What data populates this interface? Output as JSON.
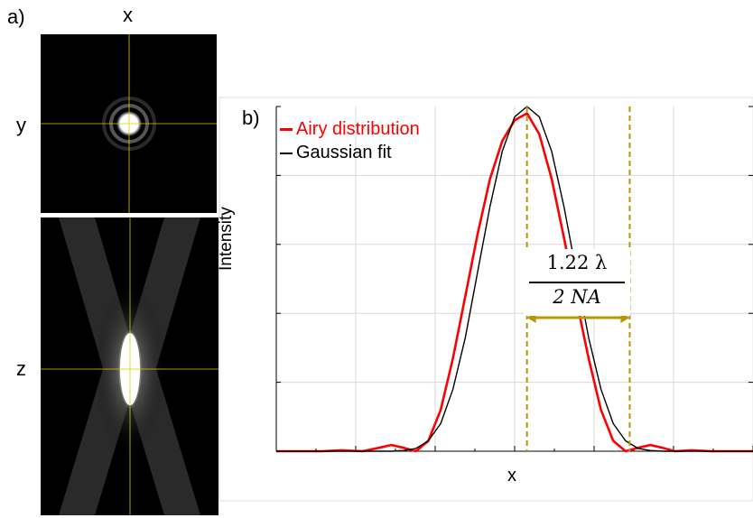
{
  "panel_a": {
    "label": "a)",
    "x_label": "x",
    "y_label": "y",
    "z_label": "z",
    "crosshair_color": "#d9d000"
  },
  "panel_b": {
    "label": "b)",
    "annotation": {
      "numerator": "1.22 λ",
      "denominator": "2 NA",
      "color": "#b8960c"
    }
  },
  "chart_data": {
    "type": "line",
    "title": "",
    "xlabel": "x",
    "ylabel": "Intensity",
    "grid": true,
    "legend_placement": "top-left",
    "xlim": [
      -6.1,
      5.5
    ],
    "ylim": [
      0,
      1.0
    ],
    "series": [
      {
        "name": "Airy distribution",
        "color": "#ff0000",
        "x": [
          -6.1,
          -5.0,
          -4.5,
          -4.0,
          -3.6,
          -3.3,
          -3.0,
          -2.7,
          -2.4,
          -2.1,
          -1.8,
          -1.5,
          -1.2,
          -0.9,
          -0.6,
          -0.3,
          0,
          0.3,
          0.6,
          0.9,
          1.2,
          1.5,
          1.8,
          2.1,
          2.4,
          2.7,
          3.0,
          3.3,
          3.6,
          4.0,
          4.5,
          5.0,
          5.5
        ],
        "y": [
          0.0,
          0.0,
          0.003,
          0.0,
          0.01,
          0.018,
          0.01,
          0.0,
          0.03,
          0.12,
          0.27,
          0.45,
          0.63,
          0.79,
          0.9,
          0.96,
          0.98,
          0.92,
          0.79,
          0.62,
          0.44,
          0.27,
          0.12,
          0.03,
          0.0,
          0.01,
          0.018,
          0.01,
          0.0,
          0.003,
          0.0,
          0.0,
          0.0
        ]
      },
      {
        "name": "Gaussian fit",
        "color": "#000000",
        "x": [
          -6.1,
          -5.0,
          -4.5,
          -4.0,
          -3.6,
          -3.3,
          -3.0,
          -2.7,
          -2.4,
          -2.1,
          -1.8,
          -1.5,
          -1.2,
          -0.9,
          -0.6,
          -0.3,
          0,
          0.3,
          0.6,
          0.9,
          1.2,
          1.5,
          1.8,
          2.1,
          2.4,
          2.7,
          3.0,
          3.3,
          3.6,
          4.0,
          4.5,
          5.0,
          5.5
        ],
        "y": [
          0.0,
          0.0,
          0.0,
          0.0,
          0.0,
          0.0,
          0.002,
          0.008,
          0.03,
          0.08,
          0.18,
          0.33,
          0.52,
          0.71,
          0.87,
          0.97,
          1.0,
          0.97,
          0.87,
          0.71,
          0.52,
          0.33,
          0.18,
          0.08,
          0.03,
          0.008,
          0.002,
          0.0,
          0.0,
          0.0,
          0.0,
          0.0,
          0.0
        ]
      }
    ],
    "markers": {
      "dashed_lines_x": [
        0,
        2.5
      ]
    }
  }
}
